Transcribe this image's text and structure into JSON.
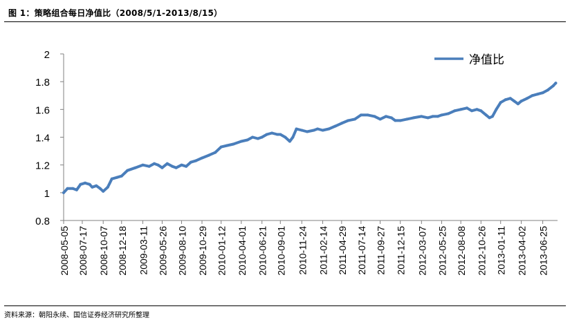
{
  "figure": {
    "title": "图 1：策略组合每日净值比（2008/5/1-2013/8/15）",
    "source": "资料来源：朝阳永续、国信证券经济研究所整理"
  },
  "colors": {
    "series": "#4A7EBB",
    "axis": "#808080"
  },
  "chart_data": {
    "type": "line",
    "title": "",
    "xlabel": "",
    "ylabel": "",
    "ylim": [
      0.8,
      2
    ],
    "yticks": [
      0.8,
      1,
      1.2,
      1.4,
      1.6,
      1.8,
      2
    ],
    "ytick_labels": [
      "0.8",
      "1",
      "1.2",
      "1.4",
      "1.6",
      "1.8",
      "2"
    ],
    "xticks": [
      "2008-05-05",
      "2008-07-17",
      "2008-10-07",
      "2008-12-18",
      "2009-03-11",
      "2009-05-26",
      "2009-08-10",
      "2009-10-29",
      "2010-01-12",
      "2010-04-01",
      "2010-06-21",
      "2010-09-01",
      "2010-11-24",
      "2011-02-14",
      "2011-04-29",
      "2011-07-14",
      "2011-09-27",
      "2011-12-15",
      "2012-03-07",
      "2012-05-25",
      "2012-08-08",
      "2012-10-26",
      "2013-01-11",
      "2013-04-02",
      "2013-06-25"
    ],
    "grid": false,
    "legend_position": "top-right",
    "series": [
      {
        "name": "净值比",
        "points": [
          [
            "2008-05-05",
            1.0
          ],
          [
            "2008-05-20",
            1.03
          ],
          [
            "2008-06-10",
            1.03
          ],
          [
            "2008-06-25",
            1.02
          ],
          [
            "2008-07-10",
            1.06
          ],
          [
            "2008-07-28",
            1.07
          ],
          [
            "2008-08-15",
            1.06
          ],
          [
            "2008-08-25",
            1.04
          ],
          [
            "2008-09-10",
            1.05
          ],
          [
            "2008-09-25",
            1.03
          ],
          [
            "2008-10-07",
            1.01
          ],
          [
            "2008-10-25",
            1.04
          ],
          [
            "2008-11-10",
            1.1
          ],
          [
            "2008-11-30",
            1.11
          ],
          [
            "2008-12-18",
            1.12
          ],
          [
            "2009-01-10",
            1.16
          ],
          [
            "2009-02-10",
            1.18
          ],
          [
            "2009-03-11",
            1.2
          ],
          [
            "2009-04-05",
            1.19
          ],
          [
            "2009-04-25",
            1.21
          ],
          [
            "2009-05-10",
            1.2
          ],
          [
            "2009-05-26",
            1.18
          ],
          [
            "2009-06-15",
            1.21
          ],
          [
            "2009-07-05",
            1.19
          ],
          [
            "2009-07-20",
            1.18
          ],
          [
            "2009-08-10",
            1.2
          ],
          [
            "2009-08-28",
            1.19
          ],
          [
            "2009-09-15",
            1.22
          ],
          [
            "2009-10-05",
            1.23
          ],
          [
            "2009-10-29",
            1.25
          ],
          [
            "2009-11-25",
            1.27
          ],
          [
            "2009-12-20",
            1.29
          ],
          [
            "2010-01-12",
            1.33
          ],
          [
            "2010-02-05",
            1.34
          ],
          [
            "2010-03-01",
            1.35
          ],
          [
            "2010-04-01",
            1.37
          ],
          [
            "2010-04-25",
            1.38
          ],
          [
            "2010-05-15",
            1.4
          ],
          [
            "2010-06-05",
            1.39
          ],
          [
            "2010-06-21",
            1.4
          ],
          [
            "2010-07-10",
            1.42
          ],
          [
            "2010-07-30",
            1.43
          ],
          [
            "2010-08-20",
            1.42
          ],
          [
            "2010-09-01",
            1.42
          ],
          [
            "2010-09-20",
            1.4
          ],
          [
            "2010-10-08",
            1.37
          ],
          [
            "2010-10-20",
            1.4
          ],
          [
            "2010-11-03",
            1.46
          ],
          [
            "2010-11-24",
            1.45
          ],
          [
            "2010-12-15",
            1.44
          ],
          [
            "2011-01-10",
            1.45
          ],
          [
            "2011-01-25",
            1.46
          ],
          [
            "2011-02-14",
            1.45
          ],
          [
            "2011-03-10",
            1.46
          ],
          [
            "2011-04-05",
            1.48
          ],
          [
            "2011-04-29",
            1.5
          ],
          [
            "2011-05-25",
            1.52
          ],
          [
            "2011-06-20",
            1.53
          ],
          [
            "2011-07-14",
            1.56
          ],
          [
            "2011-08-10",
            1.56
          ],
          [
            "2011-09-05",
            1.55
          ],
          [
            "2011-09-27",
            1.53
          ],
          [
            "2011-10-20",
            1.55
          ],
          [
            "2011-11-10",
            1.54
          ],
          [
            "2011-11-25",
            1.52
          ],
          [
            "2011-12-15",
            1.52
          ],
          [
            "2012-01-10",
            1.53
          ],
          [
            "2012-02-05",
            1.54
          ],
          [
            "2012-03-07",
            1.55
          ],
          [
            "2012-04-01",
            1.54
          ],
          [
            "2012-04-20",
            1.55
          ],
          [
            "2012-05-10",
            1.55
          ],
          [
            "2012-05-25",
            1.56
          ],
          [
            "2012-06-20",
            1.57
          ],
          [
            "2012-07-15",
            1.59
          ],
          [
            "2012-08-08",
            1.6
          ],
          [
            "2012-09-01",
            1.61
          ],
          [
            "2012-09-20",
            1.59
          ],
          [
            "2012-10-10",
            1.6
          ],
          [
            "2012-10-26",
            1.59
          ],
          [
            "2012-11-15",
            1.56
          ],
          [
            "2012-11-28",
            1.54
          ],
          [
            "2012-12-10",
            1.55
          ],
          [
            "2012-12-25",
            1.6
          ],
          [
            "2013-01-11",
            1.65
          ],
          [
            "2013-01-30",
            1.67
          ],
          [
            "2013-02-18",
            1.68
          ],
          [
            "2013-03-05",
            1.66
          ],
          [
            "2013-03-20",
            1.64
          ],
          [
            "2013-04-02",
            1.66
          ],
          [
            "2013-04-25",
            1.68
          ],
          [
            "2013-05-15",
            1.7
          ],
          [
            "2013-06-05",
            1.71
          ],
          [
            "2013-06-25",
            1.72
          ],
          [
            "2013-07-15",
            1.74
          ],
          [
            "2013-08-05",
            1.77
          ],
          [
            "2013-08-15",
            1.79
          ]
        ]
      }
    ]
  }
}
